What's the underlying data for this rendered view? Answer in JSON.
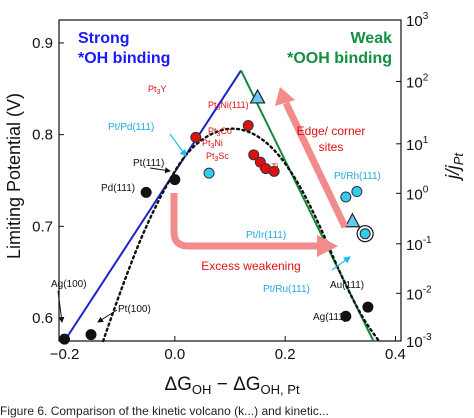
{
  "chart_data": {
    "type": "scatter",
    "xlabel": "ΔG_OH − ΔG_OH,Pt",
    "ylabel": "Limiting Potential (V)",
    "y2label": "j/j_Pt",
    "xlim": [
      -0.21,
      0.41
    ],
    "ylim": [
      0.575,
      0.925
    ],
    "x_ticks": [
      -0.2,
      0.0,
      0.2,
      0.4
    ],
    "x_tick_labels": [
      "−0.2",
      "0.0",
      "0.2",
      "0.4"
    ],
    "y_ticks": [
      0.6,
      0.7,
      0.8,
      0.9
    ],
    "y_tick_labels": [
      "0.6",
      "0.7",
      "0.8",
      "0.9"
    ],
    "y2_ticks": [
      {
        "label": "10",
        "exp": "-3",
        "value": 0.575
      },
      {
        "label": "10",
        "exp": "-2",
        "value": 0.627
      },
      {
        "label": "10",
        "exp": "-1",
        "value": 0.681
      },
      {
        "label": "10",
        "exp": "0",
        "value": 0.736
      },
      {
        "label": "10",
        "exp": "1",
        "value": 0.79
      },
      {
        "label": "10",
        "exp": "2",
        "value": 0.858
      },
      {
        "label": "10",
        "exp": "3",
        "value": 0.925
      }
    ],
    "regions": {
      "strong": {
        "title": "Strong",
        "subtitle": "*OH binding",
        "color": "#1a1aff"
      },
      "weak": {
        "title": "Weak",
        "subtitle": "*OOH binding",
        "color": "#109040"
      }
    },
    "volcano_lines": [
      {
        "name": "strong-branch",
        "color": "#1a22cc",
        "x": [
          -0.2,
          0.12
        ],
        "y": [
          0.575,
          0.87
        ]
      },
      {
        "name": "weak-branch",
        "color": "#118a3a",
        "x": [
          0.12,
          0.36
        ],
        "y": [
          0.87,
          0.575
        ]
      }
    ],
    "dotted_curve": {
      "color": "#111111",
      "x": [
        -0.13,
        -0.1,
        -0.06,
        -0.02,
        0.02,
        0.06,
        0.1,
        0.14,
        0.18,
        0.22,
        0.26,
        0.3,
        0.34,
        0.37
      ],
      "y": [
        0.575,
        0.627,
        0.69,
        0.74,
        0.78,
        0.8,
        0.808,
        0.803,
        0.785,
        0.752,
        0.705,
        0.648,
        0.6,
        0.575
      ]
    },
    "points": [
      {
        "label": "Ag(100)",
        "x": -0.2,
        "y": 0.577,
        "color": "#111111",
        "shape": "circle"
      },
      {
        "label": "Pt(100)",
        "x": -0.152,
        "y": 0.582,
        "color": "#111111",
        "shape": "circle"
      },
      {
        "label": "Pd(111)",
        "x": -0.052,
        "y": 0.737,
        "color": "#111111",
        "shape": "circle"
      },
      {
        "label": "Pt(111)",
        "x": 0.0,
        "y": 0.751,
        "color": "#111111",
        "shape": "circle"
      },
      {
        "label": "Au(111)",
        "x": 0.35,
        "y": 0.612,
        "color": "#111111",
        "shape": "circle"
      },
      {
        "label": "Ag(111)",
        "x": 0.31,
        "y": 0.602,
        "color": "#111111",
        "shape": "circle"
      },
      {
        "label": "Pt3Y",
        "x": 0.038,
        "y": 0.797,
        "color": "#dd1111",
        "shape": "circle"
      },
      {
        "label": "Pt3Ni(111)",
        "x": 0.133,
        "y": 0.81,
        "color": "#dd1111",
        "shape": "circle"
      },
      {
        "label": "Pt3Co",
        "x": 0.143,
        "y": 0.778,
        "color": "#dd1111",
        "shape": "circle"
      },
      {
        "label": "Pt3Ni",
        "x": 0.155,
        "y": 0.77,
        "color": "#dd1111",
        "shape": "circle"
      },
      {
        "label": "Pt3Sc",
        "x": 0.165,
        "y": 0.763,
        "color": "#dd1111",
        "shape": "circle"
      },
      {
        "label": "Pt3Ti",
        "x": 0.18,
        "y": 0.76,
        "color": "#dd1111",
        "shape": "circle"
      },
      {
        "label": "Pt/Pd(111)",
        "x": 0.062,
        "y": 0.758,
        "color": "#33ccee",
        "shape": "circle"
      },
      {
        "label": "Pt/Rh(111)",
        "x": 0.33,
        "y": 0.738,
        "color": "#33ccee",
        "shape": "circle"
      },
      {
        "label": "Pt/Ir(111)",
        "x": 0.31,
        "y": 0.732,
        "color": "#33ccee",
        "shape": "circle"
      },
      {
        "label": "Pt/Ru(111)",
        "x": 0.345,
        "y": 0.692,
        "color": "#33ccee",
        "shape": "circle-ring"
      },
      {
        "label": "",
        "x": 0.15,
        "y": 0.84,
        "color": "#33ccee",
        "shape": "triangle"
      },
      {
        "label": "",
        "x": 0.322,
        "y": 0.705,
        "color": "#33ccee",
        "shape": "triangle"
      }
    ],
    "annotations": [
      {
        "name": "edge-corner",
        "lines": [
          "Edge/ corner",
          "sites"
        ],
        "color": "#dd1111"
      },
      {
        "name": "excess-weakening",
        "lines": [
          "Excess weakening"
        ],
        "color": "#dd1111"
      }
    ]
  },
  "caption": "Figure 6. Comparison of the kinetic volcano (k...) and kinetic..."
}
